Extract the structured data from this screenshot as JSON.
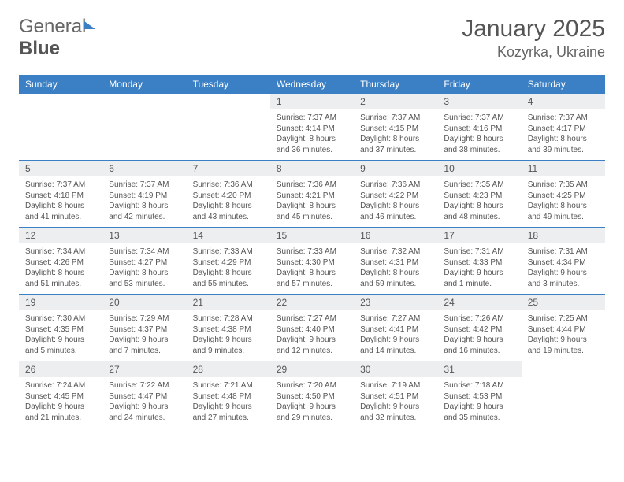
{
  "logo": {
    "word1": "General",
    "word2": "Blue"
  },
  "title": "January 2025",
  "location": "Kozyrka, Ukraine",
  "colors": {
    "header_bg": "#3b7fc4",
    "header_text": "#ffffff",
    "daynum_bg": "#eceef0",
    "border": "#3b7fc4",
    "body_text": "#555555",
    "page_bg": "#ffffff"
  },
  "weekdays": [
    "Sunday",
    "Monday",
    "Tuesday",
    "Wednesday",
    "Thursday",
    "Friday",
    "Saturday"
  ],
  "weeks": [
    [
      null,
      null,
      null,
      {
        "n": "1",
        "sr": "7:37 AM",
        "ss": "4:14 PM",
        "dl": "8 hours and 36 minutes."
      },
      {
        "n": "2",
        "sr": "7:37 AM",
        "ss": "4:15 PM",
        "dl": "8 hours and 37 minutes."
      },
      {
        "n": "3",
        "sr": "7:37 AM",
        "ss": "4:16 PM",
        "dl": "8 hours and 38 minutes."
      },
      {
        "n": "4",
        "sr": "7:37 AM",
        "ss": "4:17 PM",
        "dl": "8 hours and 39 minutes."
      }
    ],
    [
      {
        "n": "5",
        "sr": "7:37 AM",
        "ss": "4:18 PM",
        "dl": "8 hours and 41 minutes."
      },
      {
        "n": "6",
        "sr": "7:37 AM",
        "ss": "4:19 PM",
        "dl": "8 hours and 42 minutes."
      },
      {
        "n": "7",
        "sr": "7:36 AM",
        "ss": "4:20 PM",
        "dl": "8 hours and 43 minutes."
      },
      {
        "n": "8",
        "sr": "7:36 AM",
        "ss": "4:21 PM",
        "dl": "8 hours and 45 minutes."
      },
      {
        "n": "9",
        "sr": "7:36 AM",
        "ss": "4:22 PM",
        "dl": "8 hours and 46 minutes."
      },
      {
        "n": "10",
        "sr": "7:35 AM",
        "ss": "4:23 PM",
        "dl": "8 hours and 48 minutes."
      },
      {
        "n": "11",
        "sr": "7:35 AM",
        "ss": "4:25 PM",
        "dl": "8 hours and 49 minutes."
      }
    ],
    [
      {
        "n": "12",
        "sr": "7:34 AM",
        "ss": "4:26 PM",
        "dl": "8 hours and 51 minutes."
      },
      {
        "n": "13",
        "sr": "7:34 AM",
        "ss": "4:27 PM",
        "dl": "8 hours and 53 minutes."
      },
      {
        "n": "14",
        "sr": "7:33 AM",
        "ss": "4:29 PM",
        "dl": "8 hours and 55 minutes."
      },
      {
        "n": "15",
        "sr": "7:33 AM",
        "ss": "4:30 PM",
        "dl": "8 hours and 57 minutes."
      },
      {
        "n": "16",
        "sr": "7:32 AM",
        "ss": "4:31 PM",
        "dl": "8 hours and 59 minutes."
      },
      {
        "n": "17",
        "sr": "7:31 AM",
        "ss": "4:33 PM",
        "dl": "9 hours and 1 minute."
      },
      {
        "n": "18",
        "sr": "7:31 AM",
        "ss": "4:34 PM",
        "dl": "9 hours and 3 minutes."
      }
    ],
    [
      {
        "n": "19",
        "sr": "7:30 AM",
        "ss": "4:35 PM",
        "dl": "9 hours and 5 minutes."
      },
      {
        "n": "20",
        "sr": "7:29 AM",
        "ss": "4:37 PM",
        "dl": "9 hours and 7 minutes."
      },
      {
        "n": "21",
        "sr": "7:28 AM",
        "ss": "4:38 PM",
        "dl": "9 hours and 9 minutes."
      },
      {
        "n": "22",
        "sr": "7:27 AM",
        "ss": "4:40 PM",
        "dl": "9 hours and 12 minutes."
      },
      {
        "n": "23",
        "sr": "7:27 AM",
        "ss": "4:41 PM",
        "dl": "9 hours and 14 minutes."
      },
      {
        "n": "24",
        "sr": "7:26 AM",
        "ss": "4:42 PM",
        "dl": "9 hours and 16 minutes."
      },
      {
        "n": "25",
        "sr": "7:25 AM",
        "ss": "4:44 PM",
        "dl": "9 hours and 19 minutes."
      }
    ],
    [
      {
        "n": "26",
        "sr": "7:24 AM",
        "ss": "4:45 PM",
        "dl": "9 hours and 21 minutes."
      },
      {
        "n": "27",
        "sr": "7:22 AM",
        "ss": "4:47 PM",
        "dl": "9 hours and 24 minutes."
      },
      {
        "n": "28",
        "sr": "7:21 AM",
        "ss": "4:48 PM",
        "dl": "9 hours and 27 minutes."
      },
      {
        "n": "29",
        "sr": "7:20 AM",
        "ss": "4:50 PM",
        "dl": "9 hours and 29 minutes."
      },
      {
        "n": "30",
        "sr": "7:19 AM",
        "ss": "4:51 PM",
        "dl": "9 hours and 32 minutes."
      },
      {
        "n": "31",
        "sr": "7:18 AM",
        "ss": "4:53 PM",
        "dl": "9 hours and 35 minutes."
      },
      null
    ]
  ],
  "labels": {
    "sunrise": "Sunrise:",
    "sunset": "Sunset:",
    "daylight": "Daylight:"
  }
}
